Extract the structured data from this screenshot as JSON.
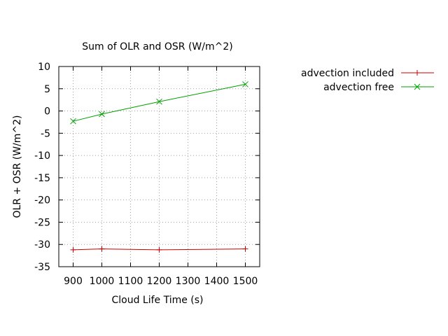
{
  "chart_data": {
    "type": "line",
    "title": "Sum of OLR and OSR (W/m^2)",
    "xlabel": "Cloud Life Time (s)",
    "ylabel": "OLR + OSR (W/m^2)",
    "xlim": [
      850,
      1550
    ],
    "ylim": [
      -35,
      10
    ],
    "xticks": [
      900,
      1000,
      1100,
      1200,
      1300,
      1400,
      1500
    ],
    "yticks": [
      10,
      5,
      0,
      -5,
      -10,
      -15,
      -20,
      -25,
      -30,
      -35
    ],
    "grid": true,
    "legend_position": "outside-top-right",
    "series": [
      {
        "name": "advection included",
        "color": "#cc0000",
        "marker": "plus",
        "x": [
          900,
          1000,
          1200,
          1500
        ],
        "y": [
          -31.2,
          -31.0,
          -31.2,
          -31.0
        ]
      },
      {
        "name": "advection free",
        "color": "#00a000",
        "marker": "cross",
        "x": [
          900,
          1000,
          1200,
          1500
        ],
        "y": [
          -2.3,
          -0.7,
          2.1,
          6.0
        ]
      }
    ]
  }
}
